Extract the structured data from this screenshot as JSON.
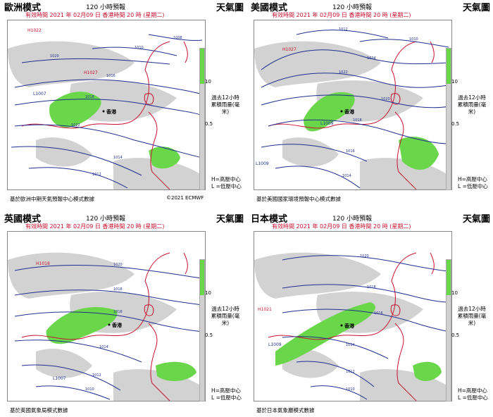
{
  "panels": [
    {
      "model": "歐洲模式",
      "forecast": "120 小時預報",
      "title": "天氣圖",
      "valid": "有效時間 2021 年 02月09 日    香港時間 20 時  (星期二)",
      "legend": "過去12小時累積雨量(毫米)",
      "tick_hi": "10",
      "tick_lo": "0.5",
      "hl": "H=高壓中心\nL =低壓中心",
      "footer": "基於歐洲中期天氣預報中心模式數據",
      "copyright": "©2021 ECMWF",
      "city": "香港",
      "isobars": [
        "1016",
        "1018",
        "1020",
        "1022",
        "1014",
        "1012",
        "1010",
        "1008"
      ]
    },
    {
      "model": "美國模式",
      "forecast": "120 小時預報",
      "title": "天氣圖",
      "valid": "有效時間 2021 年 02月09 日    香港時間 20 時  (星期二)",
      "legend": "過去12小時累積雨量(毫米)",
      "tick_hi": "10",
      "tick_lo": "0.5",
      "hl": "H=高壓中心\nL =低壓中心",
      "footer": "基於美國國家環境預報中心模式數據",
      "copyright": "",
      "city": "香港",
      "isobars": [
        "1024",
        "1022",
        "1020",
        "1018",
        "1016",
        "1014",
        "1012",
        "1010"
      ]
    },
    {
      "model": "英國模式",
      "forecast": "120 小時預報",
      "title": "天氣圖",
      "valid": "有效時間 2021 年 02月09 日    香港時間 20 時  (星期二)",
      "legend": "過去12小時累積雨量(毫米)",
      "tick_hi": "10",
      "tick_lo": "0.5",
      "hl": "H=高壓中心\nL =低壓中心",
      "footer": "基於英國氣象局模式數據",
      "copyright": "",
      "city": "香港",
      "isobars": [
        "1020",
        "1018",
        "1016",
        "1014",
        "1012",
        "1010"
      ]
    },
    {
      "model": "日本模式",
      "forecast": "120 小時預報",
      "title": "天氣圖",
      "valid": "有效時間 2021 年 02月09 日    香港時間 20 時  (星期二)",
      "legend": "過去12小時累積雨量(毫米)",
      "tick_hi": "10",
      "tick_lo": "0.5",
      "hl": "H=高壓中心\nL =低壓中心",
      "footer": "基於日本氣象廳模式數據",
      "copyright": "",
      "city": "香港",
      "isobars": [
        "1020",
        "1018",
        "1016",
        "1014",
        "1012",
        "1010"
      ]
    }
  ],
  "colors": {
    "rain_heavy": "#6ad64a",
    "rain_light": "#d2d2d2",
    "isobar": "#1f2f8f",
    "coast": "#c8102e",
    "text_red": "#c8102e"
  },
  "pressure_centres": [
    {
      "panel": 0,
      "marks": [
        {
          "type": "H",
          "value": "1022"
        },
        {
          "type": "H",
          "value": "1027"
        },
        {
          "type": "L",
          "value": "1007"
        }
      ]
    },
    {
      "panel": 1,
      "marks": [
        {
          "type": "H",
          "value": "1027"
        },
        {
          "type": "L",
          "value": "1009"
        },
        {
          "type": "L",
          "value": "1009"
        }
      ]
    },
    {
      "panel": 2,
      "marks": [
        {
          "type": "H",
          "value": "1018"
        },
        {
          "type": "L",
          "value": "1007"
        }
      ]
    },
    {
      "panel": 3,
      "marks": [
        {
          "type": "H",
          "value": "1021"
        },
        {
          "type": "L",
          "value": "1009"
        }
      ]
    }
  ]
}
